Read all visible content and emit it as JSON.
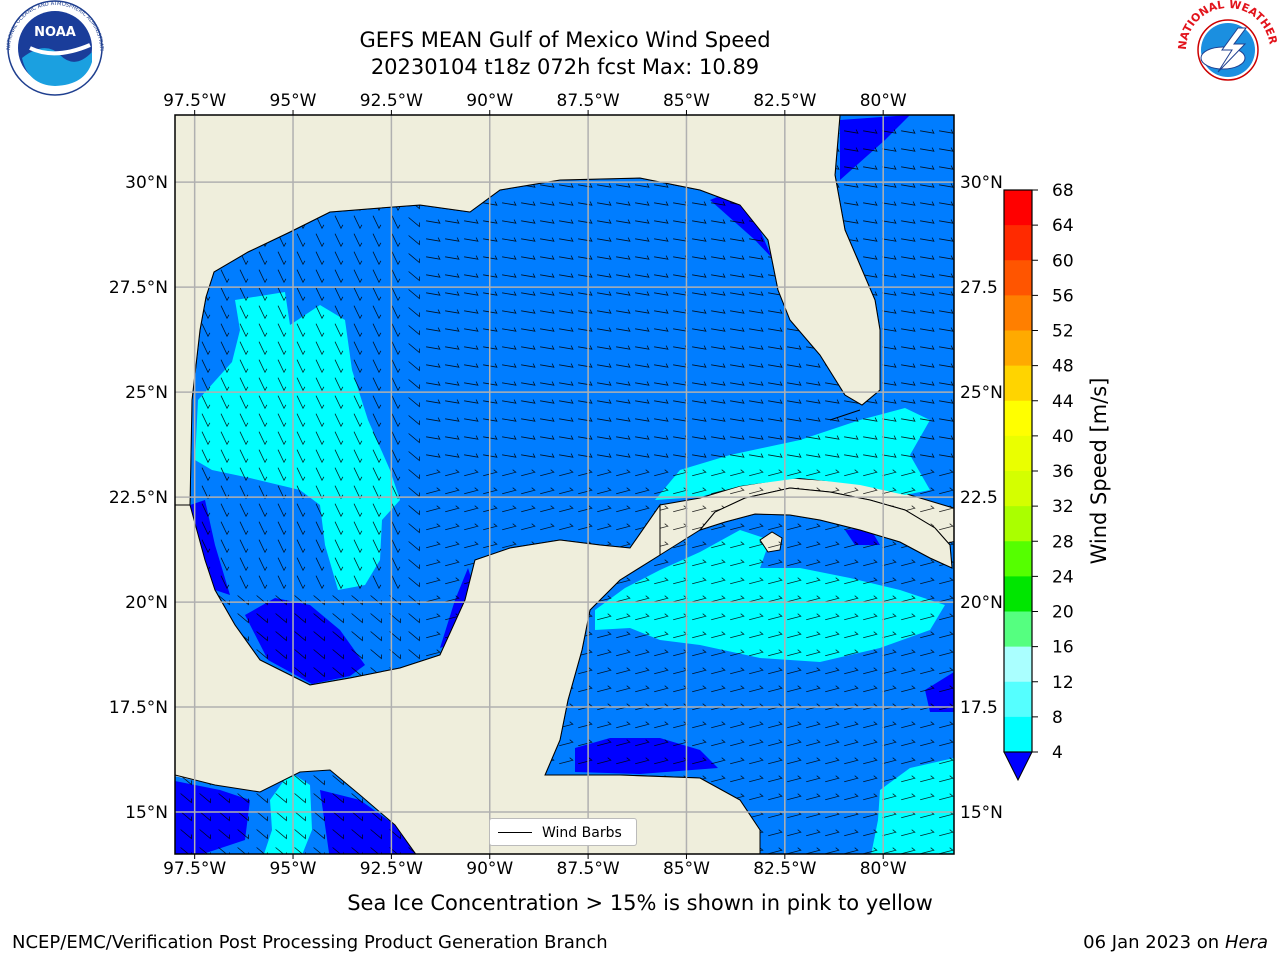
{
  "header": {
    "title_line1": "GEFS MEAN Gulf of Mexico Wind Speed",
    "title_line2": "20230104 t18z 072h fcst   Max: 10.89"
  },
  "logos": {
    "noaa": {
      "icon": "noaa-logo",
      "text": "NOAA",
      "ring_text": "NATIONAL OCEANIC AND ATMOSPHERIC ADMINISTRATION · U.S. DEPARTMENT OF COMMERCE"
    },
    "nws": {
      "icon": "nws-logo",
      "ring_text": "NATIONAL WEATHER SERVICE"
    }
  },
  "map": {
    "lon_ticks": [
      "97.5°W",
      "95°W",
      "92.5°W",
      "90°W",
      "87.5°W",
      "85°W",
      "82.5°W",
      "80°W"
    ],
    "lat_ticks_left": [
      "30°N",
      "27.5°N",
      "25°N",
      "22.5°N",
      "20°N",
      "17.5°N",
      "15°N"
    ],
    "lat_ticks_right": [
      "30°N",
      "27.5",
      "25°N",
      "22.5",
      "20°N",
      "17.5",
      "15°N"
    ],
    "lon_values": [
      -97.5,
      -95,
      -92.5,
      -90,
      -87.5,
      -85,
      -82.5,
      -80
    ],
    "lat_values": [
      30,
      27.5,
      25,
      22.5,
      20,
      17.5,
      15
    ],
    "extent": {
      "lon_min": -98,
      "lon_max": -78.2,
      "lat_min": 14,
      "lat_max": 31.6
    },
    "colors": {
      "land": "#efeedc",
      "ocean_4_8": "#007dff",
      "ocean_lt4": "#0000ff",
      "ocean_8_12": "#00ffff",
      "grid": "#b0b0b0",
      "coast": "#000000"
    },
    "legend_label": "Wind Barbs"
  },
  "colorbar": {
    "label": "Wind Speed [m/s]",
    "ticks": [
      "68",
      "64",
      "60",
      "56",
      "52",
      "48",
      "44",
      "40",
      "36",
      "32",
      "28",
      "24",
      "20",
      "16",
      "12",
      "8",
      "4"
    ],
    "colors_top_to_bottom": [
      "#ff0000",
      "#ff2a00",
      "#ff5500",
      "#ff7f00",
      "#ffaa00",
      "#ffd400",
      "#ffff00",
      "#eaff00",
      "#d4ff00",
      "#aaff00",
      "#55ff00",
      "#00e600",
      "#55ff80",
      "#aaffff",
      "#55ffff",
      "#00ffff",
      "#007dff"
    ],
    "extend_color": "#0000ff"
  },
  "footer": {
    "subtitle": "Sea Ice Concentration > 15% is shown in pink to yellow",
    "credit": "NCEP/EMC/Verification Post Processing Product Generation Branch",
    "date": "06 Jan 2023 on",
    "host": "Hera"
  }
}
